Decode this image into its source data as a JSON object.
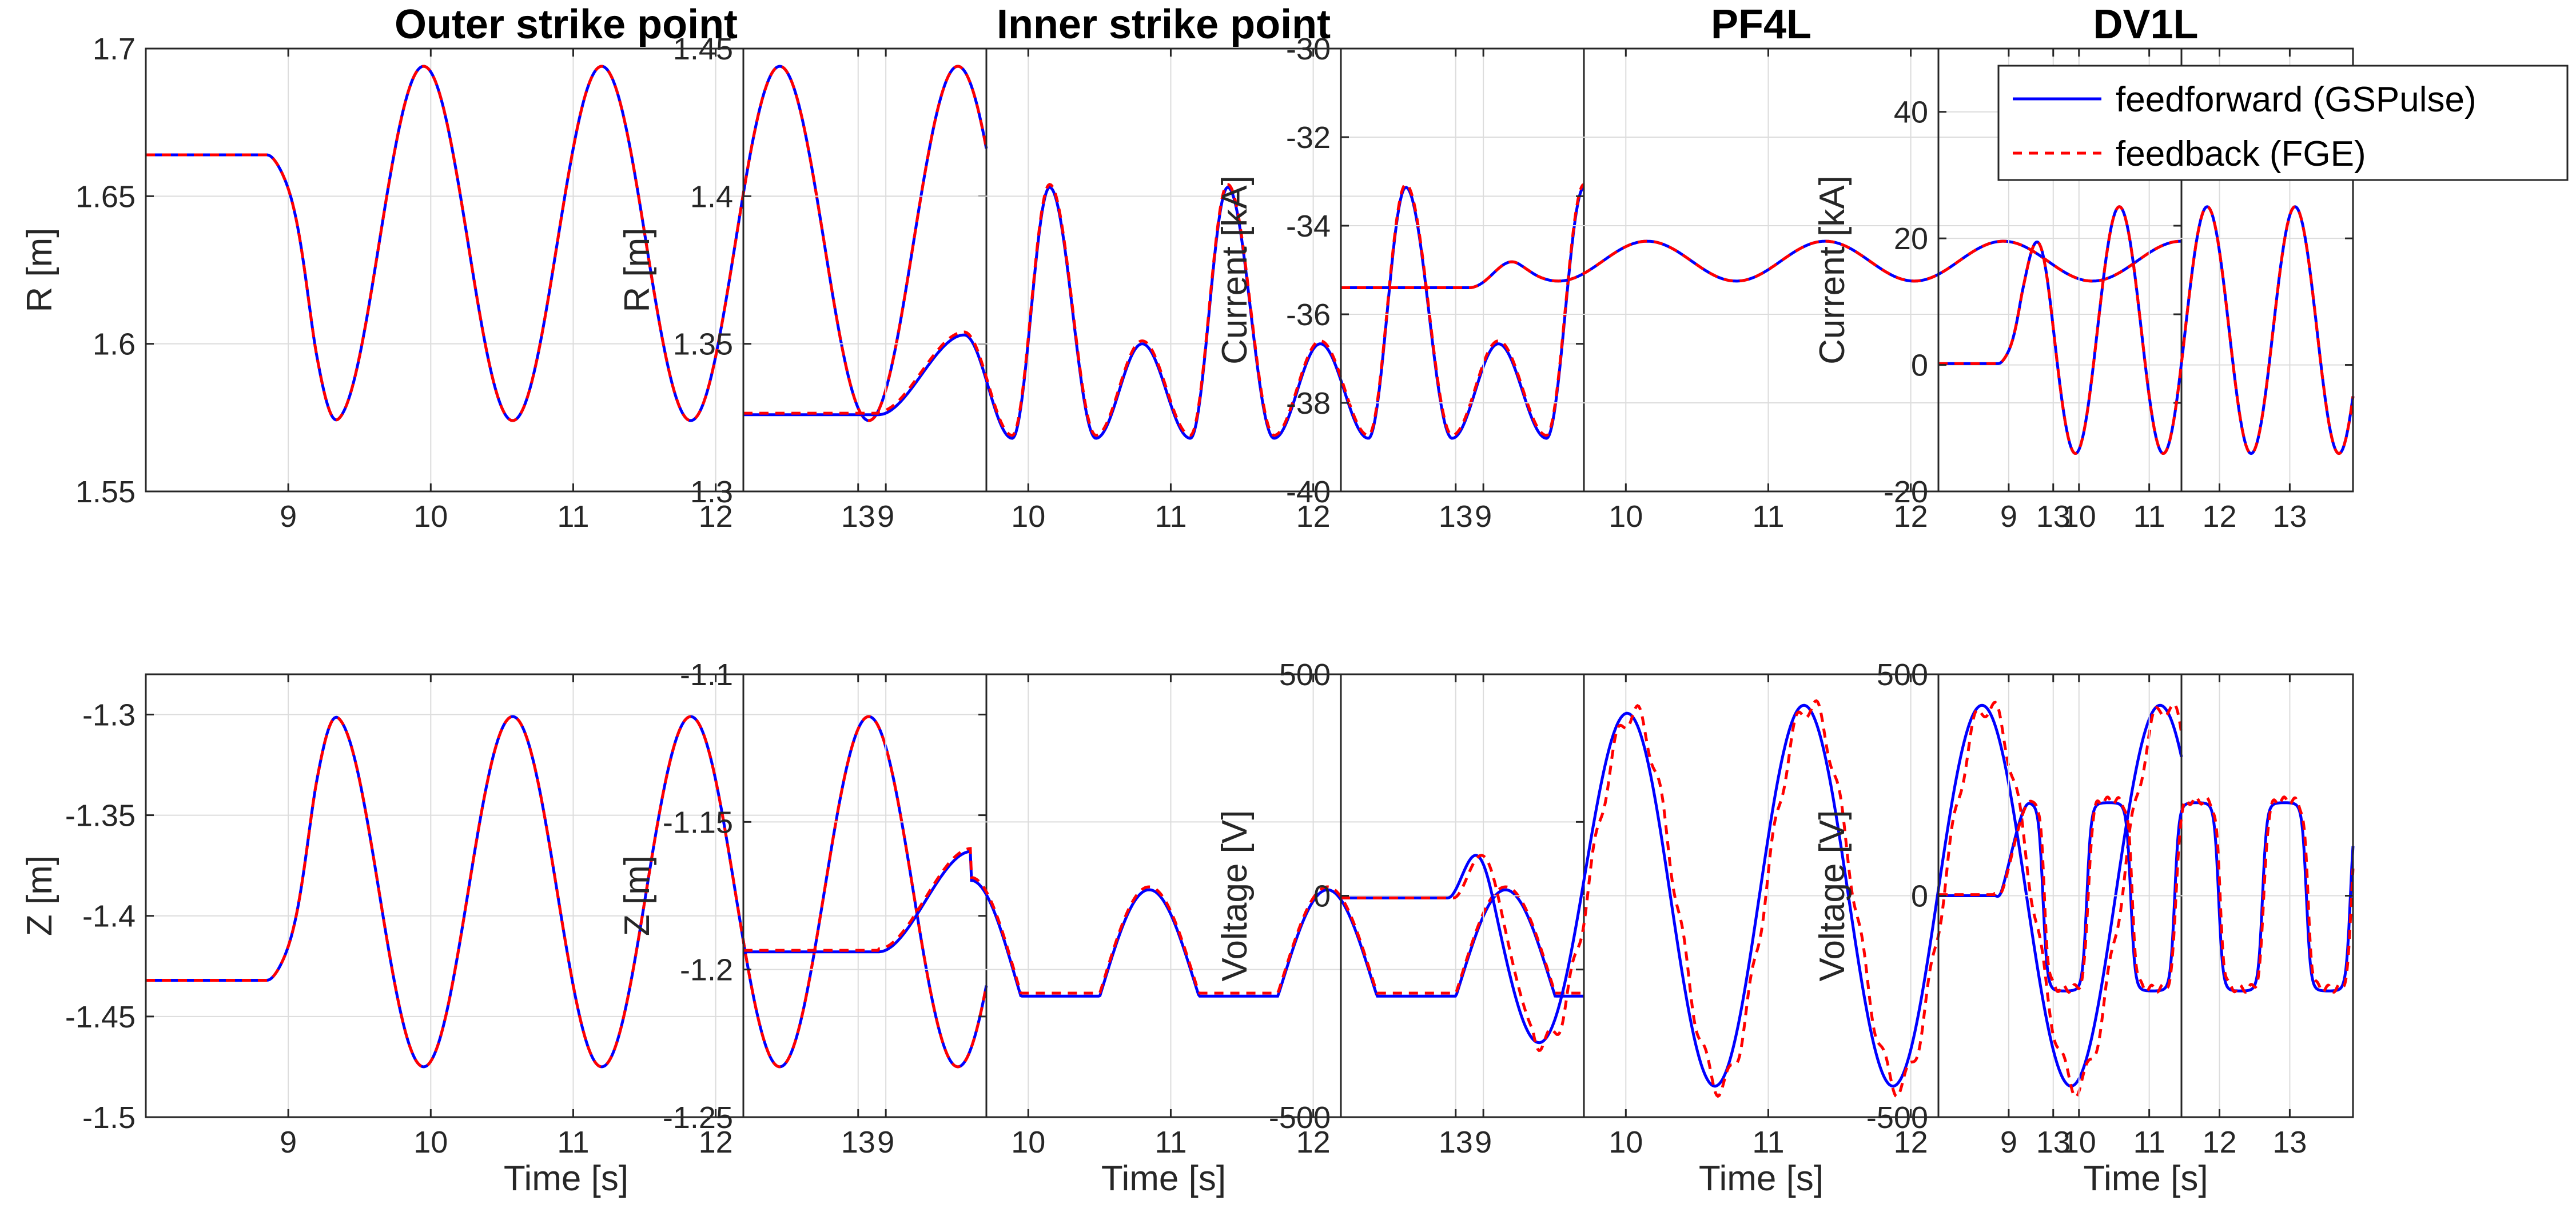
{
  "chart_data": {
    "type": "line",
    "legend": {
      "placement": "top-right of last top panel",
      "entries": [
        "feedforward (GSPulse)",
        "feedback (FGE)"
      ],
      "colors": [
        "#0000ff",
        "#ff0000"
      ],
      "styles": [
        "solid",
        "dashed"
      ]
    },
    "panels": [
      {
        "title": "Outer strike point",
        "ylabel": "R [m]",
        "xlabel": "",
        "xlim": [
          8,
          13.9
        ],
        "xticks": [
          9,
          10,
          11,
          12,
          13
        ],
        "ylim": [
          1.55,
          1.7
        ],
        "yticks": [
          1.55,
          1.6,
          1.65,
          1.7
        ],
        "ytick_labels": [
          "1.55",
          "1.6",
          "1.65",
          "1.7"
        ],
        "shape": "sine",
        "base": 1.664,
        "onset": 8.85,
        "period": 1.25,
        "phase": 0.12,
        "mean": 1.634,
        "amp": 0.06,
        "start_amp": 0.0,
        "rampdur": 0.5,
        "lag": 0.0,
        "fb_offset": 0.0,
        "fb_ripple": 0.0
      },
      {
        "title": "Inner strike point",
        "ylabel": "R [m]",
        "xlabel": "",
        "xlim": [
          8,
          13.9
        ],
        "xticks": [
          9,
          10,
          11,
          12,
          13
        ],
        "ylim": [
          1.3,
          1.45
        ],
        "yticks": [
          1.3,
          1.35,
          1.4,
          1.45
        ],
        "ytick_labels": [
          "1.3",
          "1.35",
          "1.4",
          "1.45"
        ],
        "shape": "double",
        "base": 1.326,
        "onset": 8.95,
        "peak_first": 1.353,
        "big_peak": 1.403,
        "small_peak": 1.35,
        "trough": 1.318,
        "period": 1.25,
        "lag": 0.0,
        "fb_offset": 0.001,
        "fb_ripple": 0.0
      },
      {
        "title": "PF4L",
        "ylabel": "Current [kA]",
        "xlabel": "",
        "xlim": [
          8,
          13.9
        ],
        "xticks": [
          9,
          10,
          11,
          12,
          13
        ],
        "ylim": [
          -40,
          -30
        ],
        "yticks": [
          -40,
          -38,
          -36,
          -34,
          -32,
          -30
        ],
        "ytick_labels": [
          "-40",
          "-38",
          "-36",
          "-34",
          "-32",
          "-30"
        ],
        "shape": "sine",
        "base": -35.4,
        "onset": 8.9,
        "period": 1.25,
        "phase": 0.0,
        "mean": -34.8,
        "amp": 0.45,
        "start_amp": 0.0,
        "rampdur": 0.5,
        "lag": 0.0,
        "fb_offset": 0.0,
        "fb_ripple": 0.0
      },
      {
        "title": "DV1L",
        "ylabel": "Current [kA]",
        "xlabel": "",
        "xlim": [
          8,
          13.9
        ],
        "xticks": [
          9,
          10,
          11,
          12,
          13
        ],
        "ylim": [
          -20,
          50
        ],
        "yticks": [
          -20,
          0,
          20,
          40
        ],
        "ytick_labels": [
          "-20",
          "0",
          "20",
          "40"
        ],
        "shape": "sine",
        "base": 0.2,
        "onset": 8.85,
        "period": 1.25,
        "phase": 0.62,
        "mean": 5.5,
        "amp": 19.5,
        "start_amp": 0.0,
        "rampdur": 0.8,
        "lag": 0.0,
        "fb_offset": 0.0,
        "fb_ripple": 0.0,
        "legend": true
      },
      {
        "title": "",
        "ylabel": "Z [m]",
        "xlabel": "Time [s]",
        "xlim": [
          8,
          13.9
        ],
        "xticks": [
          9,
          10,
          11,
          12,
          13
        ],
        "ylim": [
          -1.5,
          -1.28
        ],
        "yticks": [
          -1.5,
          -1.45,
          -1.4,
          -1.35,
          -1.3
        ],
        "ytick_labels": [
          "-1.5",
          "-1.45",
          "-1.4",
          "-1.35",
          "-1.3"
        ],
        "shape": "sine",
        "base": -1.432,
        "onset": 8.85,
        "period": 1.25,
        "phase": 0.62,
        "mean": -1.388,
        "amp": 0.087,
        "start_amp": 0.0,
        "rampdur": 0.5,
        "lag": 0.0,
        "fb_offset": 0.0,
        "fb_ripple": 0.0
      },
      {
        "title": "",
        "ylabel": "Z [m]",
        "xlabel": "Time [s]",
        "xlim": [
          8,
          13.9
        ],
        "xticks": [
          9,
          10,
          11,
          12,
          13
        ],
        "ylim": [
          -1.25,
          -1.1
        ],
        "yticks": [
          -1.25,
          -1.2,
          -1.15,
          -1.1
        ],
        "ytick_labels": [
          "-1.25",
          "-1.2",
          "-1.15",
          "-1.1"
        ],
        "shape": "clipped",
        "base": -1.194,
        "onset": 8.95,
        "period": 1.25,
        "first_peak": -1.16,
        "peak": -1.164,
        "floor": -1.209,
        "lag": 0.0,
        "fb_offset": 0.001,
        "fb_ripple": 0.0
      },
      {
        "title": "",
        "ylabel": "Voltage [V]",
        "xlabel": "Time [s]",
        "xlim": [
          8,
          13.9
        ],
        "xticks": [
          9,
          10,
          11,
          12,
          13
        ],
        "ylim": [
          -500,
          500
        ],
        "yticks": [
          -500,
          0,
          500
        ],
        "ytick_labels": [
          "-500",
          "0",
          "500"
        ],
        "shape": "sine",
        "base": -5,
        "onset": 8.75,
        "period": 1.25,
        "phase": 0.0,
        "mean": 0,
        "amp": 430,
        "start_amp": 280,
        "rampdur": 1.6,
        "lag": 0.04,
        "fb_offset": 0,
        "fb_ripple": 25
      },
      {
        "title": "",
        "ylabel": "Voltage [V]",
        "xlabel": "Time [s]",
        "xlim": [
          8,
          13.9
        ],
        "xticks": [
          9,
          10,
          11,
          12,
          13
        ],
        "ylim": [
          -500,
          500
        ],
        "yticks": [
          -500,
          0,
          500
        ],
        "ytick_labels": [
          "-500",
          "0",
          "500"
        ],
        "shape": "square",
        "base": 0,
        "onset": 8.8,
        "period": 1.25,
        "phase": 0.95,
        "high": 210,
        "low": -215,
        "lag": 0.02,
        "fb_offset": 5,
        "fb_ripple": 8
      }
    ]
  }
}
